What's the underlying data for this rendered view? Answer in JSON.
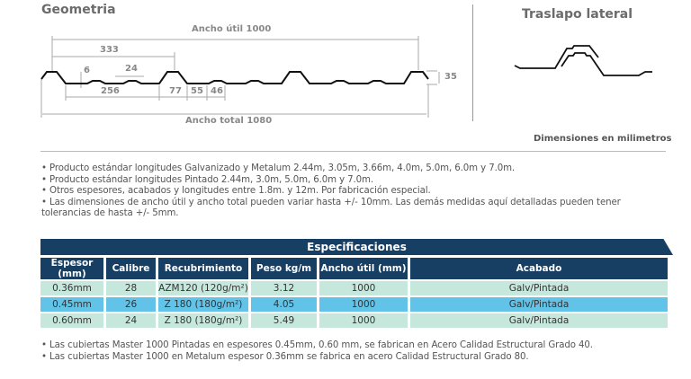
{
  "geometry": {
    "title": "Geometria",
    "ancho_util": "Ancho útil 1000",
    "ancho_total": "Ancho total 1080",
    "d333": "333",
    "d24": "24",
    "d6": "6",
    "d256": "256",
    "d77": "77",
    "d55": "55",
    "d46": "46",
    "d35": "35"
  },
  "overlap": {
    "title": "Traslapo lateral"
  },
  "units_note": "Dimensiones en milimetros",
  "notes": [
    "• Producto estándar longitudes Galvanizado y Metalum 2.44m, 3.05m, 3.66m, 4.0m, 5.0m, 6.0m y 7.0m.",
    "• Producto estándar longitudes Pintado 2.44m, 3.0m, 5.0m, 6.0m y 7.0m.",
    "• Otros espesores, acabados y longitudes entre 1.8m. y 12m. Por fabricación especial.",
    "• Las dimensiones de ancho útil y ancho total pueden variar hasta +/- 10mm. Las demás medidas aquí detalladas pueden tener tolerancias de hasta +/- 5mm."
  ],
  "specs": {
    "title": "Especificaciones",
    "columns": [
      "Espesor (mm)",
      "Calibre",
      "Recubrimiento",
      "Peso kg/m",
      "Ancho útil (mm)",
      "Acabado"
    ],
    "rows": [
      [
        "0.36mm",
        "28",
        "AZM120 (120g/m²)",
        "3.12",
        "1000",
        "Galv/Pintada"
      ],
      [
        "0.45mm",
        "26",
        "Z 180 (180g/m²)",
        "4.05",
        "1000",
        "Galv/Pintada"
      ],
      [
        "0.60mm",
        "24",
        "Z 180 (180g/m²)",
        "5.49",
        "1000",
        "Galv/Pintada"
      ]
    ]
  },
  "footnotes": [
    "• Las cubiertas Master 1000 Pintadas en espesores 0.45mm, 0.60 mm, se fabrican en Acero Calidad Estructural Grado 40.",
    "• Las cubiertas Master 1000 en Metalum espesor 0.36mm se fabrica en acero Calidad Estructural Grado 80."
  ],
  "colors": {
    "header": "#163f63",
    "row_light": "#c6e8dc",
    "row_highlight": "#62c3e8"
  }
}
